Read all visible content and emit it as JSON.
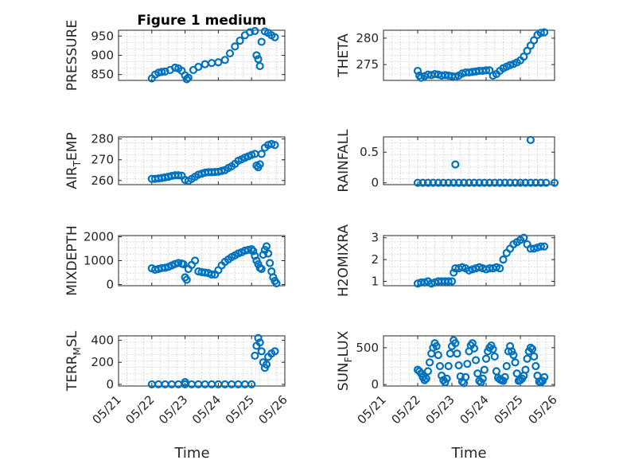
{
  "page": {
    "background": "#ffffff",
    "marker_color": "#0072BD"
  },
  "chart_data": [
    {
      "type": "scatter",
      "title": "Figure 1 medium",
      "ylabel": "PRESSURE",
      "ylabel_sub": "",
      "ylim": [
        835,
        965
      ],
      "yticks": [
        850,
        900,
        950
      ],
      "ytick_labels": [
        "850",
        "900",
        "950"
      ],
      "xlim": [
        0,
        5
      ],
      "grid": true,
      "x": [
        1.0,
        1.1,
        1.2,
        1.3,
        1.4,
        1.55,
        1.7,
        1.8,
        1.9,
        2.0,
        2.05,
        2.1,
        2.25,
        2.4,
        2.6,
        2.8,
        3.0,
        3.2,
        3.35,
        3.5,
        3.65,
        3.8,
        3.95,
        4.1,
        4.15,
        4.2,
        4.25,
        4.3,
        4.4,
        4.5,
        4.6,
        4.7
      ],
      "y": [
        840,
        850,
        855,
        857,
        858,
        862,
        868,
        866,
        860,
        848,
        838,
        842,
        862,
        870,
        877,
        880,
        882,
        888,
        905,
        923,
        938,
        952,
        960,
        963,
        900,
        890,
        872,
        935,
        962,
        958,
        952,
        947
      ]
    },
    {
      "type": "scatter",
      "title": "",
      "ylabel": "THETA",
      "ylabel_sub": "",
      "ylim": [
        272,
        281.5
      ],
      "yticks": [
        275,
        280
      ],
      "ytick_labels": [
        "275",
        "280"
      ],
      "xlim": [
        0,
        5
      ],
      "grid": true,
      "x": [
        1.0,
        1.05,
        1.1,
        1.2,
        1.3,
        1.4,
        1.5,
        1.6,
        1.7,
        1.8,
        1.9,
        2.0,
        2.1,
        2.2,
        2.3,
        2.4,
        2.5,
        2.6,
        2.7,
        2.8,
        2.9,
        3.0,
        3.1,
        3.2,
        3.3,
        3.4,
        3.5,
        3.6,
        3.7,
        3.8,
        3.9,
        4.0,
        4.1,
        4.2,
        4.3,
        4.4,
        4.5,
        4.6,
        4.7
      ],
      "y": [
        273.8,
        272.9,
        272.5,
        272.8,
        273.1,
        273.0,
        273.2,
        273.1,
        272.9,
        273.0,
        272.9,
        272.8,
        272.7,
        272.9,
        273.3,
        273.5,
        273.5,
        273.6,
        273.7,
        273.8,
        273.8,
        273.9,
        273.9,
        272.9,
        273.2,
        273.8,
        274.3,
        274.6,
        274.9,
        275.1,
        275.4,
        275.8,
        276.5,
        277.6,
        278.6,
        279.6,
        280.6,
        281.0,
        281.1
      ]
    },
    {
      "type": "scatter",
      "title": "",
      "ylabel": "AIR",
      "ylabel_sub": "T",
      "ylabel_tail": "EMP",
      "ylim": [
        258,
        281
      ],
      "yticks": [
        260,
        270,
        280
      ],
      "ytick_labels": [
        "260",
        "270",
        "280"
      ],
      "xlim": [
        0,
        5
      ],
      "grid": true,
      "x": [
        1.0,
        1.1,
        1.2,
        1.3,
        1.4,
        1.5,
        1.6,
        1.7,
        1.8,
        1.9,
        2.0,
        2.1,
        2.2,
        2.3,
        2.4,
        2.5,
        2.6,
        2.7,
        2.8,
        2.9,
        3.0,
        3.1,
        3.2,
        3.3,
        3.4,
        3.5,
        3.6,
        3.7,
        3.8,
        3.9,
        4.0,
        4.1,
        4.15,
        4.2,
        4.25,
        4.3,
        4.4,
        4.5,
        4.6,
        4.7
      ],
      "y": [
        260.8,
        260.8,
        261.0,
        261.2,
        261.5,
        261.8,
        262.2,
        262.5,
        262.5,
        262.3,
        260.3,
        259.8,
        260.8,
        261.8,
        262.8,
        263.3,
        263.8,
        264.0,
        264.0,
        264.1,
        264.2,
        264.6,
        265.0,
        266.0,
        266.8,
        268.0,
        269.5,
        270.2,
        271.0,
        271.6,
        272.3,
        272.8,
        267.2,
        266.4,
        267.8,
        272.8,
        275.8,
        277.1,
        277.6,
        277.1
      ]
    },
    {
      "type": "scatter",
      "title": "",
      "ylabel": "RAINFALL",
      "ylabel_sub": "",
      "ylim": [
        -0.03,
        0.75
      ],
      "yticks": [
        0,
        0.5
      ],
      "ytick_labels": [
        "0",
        "0.5"
      ],
      "xlim": [
        0,
        5
      ],
      "grid": true,
      "x": [
        1.0,
        1.15,
        1.3,
        1.45,
        1.6,
        1.75,
        1.9,
        2.05,
        2.2,
        2.35,
        2.5,
        2.65,
        2.8,
        2.95,
        3.1,
        3.25,
        3.4,
        3.55,
        3.7,
        3.85,
        4.0,
        4.15,
        4.3,
        4.45,
        4.6,
        4.75,
        5.0,
        2.1,
        4.3
      ],
      "y": [
        0,
        0,
        0,
        0,
        0,
        0,
        0,
        0,
        0,
        0,
        0,
        0,
        0,
        0,
        0,
        0,
        0,
        0,
        0,
        0,
        0,
        0,
        0,
        0,
        0,
        0,
        0,
        0.3,
        0.7
      ]
    },
    {
      "type": "scatter",
      "title": "",
      "ylabel": "MIXDEPTH",
      "ylabel_sub": "",
      "ylim": [
        -50,
        2050
      ],
      "yticks": [
        0,
        1000,
        2000
      ],
      "ytick_labels": [
        "0",
        "1000",
        "2000"
      ],
      "xlim": [
        0,
        5
      ],
      "grid": true,
      "x": [
        1.0,
        1.1,
        1.2,
        1.3,
        1.4,
        1.5,
        1.6,
        1.7,
        1.8,
        1.9,
        1.95,
        2.0,
        2.05,
        2.1,
        2.2,
        2.3,
        2.4,
        2.5,
        2.6,
        2.7,
        2.8,
        2.9,
        3.0,
        3.1,
        3.2,
        3.3,
        3.4,
        3.5,
        3.6,
        3.7,
        3.8,
        3.9,
        4.0,
        4.05,
        4.1,
        4.15,
        4.2,
        4.25,
        4.3,
        4.35,
        4.4,
        4.45,
        4.5,
        4.55,
        4.6,
        4.65,
        4.7,
        4.75
      ],
      "y": [
        680,
        620,
        650,
        690,
        700,
        740,
        800,
        860,
        900,
        880,
        850,
        300,
        200,
        650,
        820,
        1000,
        550,
        520,
        500,
        480,
        420,
        420,
        600,
        800,
        950,
        1050,
        1150,
        1220,
        1300,
        1350,
        1420,
        1450,
        1480,
        1400,
        1200,
        1000,
        850,
        700,
        650,
        1250,
        1450,
        1600,
        1300,
        900,
        550,
        300,
        150,
        50
      ]
    },
    {
      "type": "scatter",
      "title": "",
      "ylabel": "H2OMIXRA",
      "ylabel_sub": "",
      "ylim": [
        0.8,
        3.1
      ],
      "yticks": [
        1,
        2,
        3
      ],
      "ytick_labels": [
        "1",
        "2",
        "3"
      ],
      "xlim": [
        0,
        5
      ],
      "grid": true,
      "x": [
        1.0,
        1.1,
        1.2,
        1.3,
        1.4,
        1.5,
        1.6,
        1.7,
        1.8,
        1.9,
        2.0,
        2.05,
        2.1,
        2.2,
        2.3,
        2.4,
        2.5,
        2.6,
        2.7,
        2.8,
        2.9,
        3.0,
        3.1,
        3.2,
        3.3,
        3.4,
        3.5,
        3.6,
        3.7,
        3.8,
        3.9,
        4.0,
        4.1,
        4.2,
        4.3,
        4.4,
        4.5,
        4.6,
        4.7
      ],
      "y": [
        0.9,
        0.95,
        0.95,
        1.0,
        0.9,
        0.95,
        1.0,
        1.0,
        1.0,
        1.0,
        1.0,
        1.4,
        1.6,
        1.6,
        1.65,
        1.6,
        1.5,
        1.55,
        1.6,
        1.65,
        1.6,
        1.55,
        1.6,
        1.6,
        1.65,
        1.6,
        2.0,
        2.3,
        2.5,
        2.7,
        2.8,
        2.9,
        3.0,
        2.7,
        2.5,
        2.5,
        2.55,
        2.6,
        2.6
      ]
    },
    {
      "type": "scatter",
      "title": "",
      "ylabel": "TERR",
      "ylabel_sub": "M",
      "ylabel_tail": "SL",
      "ylim": [
        -15,
        440
      ],
      "yticks": [
        0,
        200,
        400
      ],
      "ytick_labels": [
        "0",
        "200",
        "400"
      ],
      "xlim": [
        0,
        5
      ],
      "grid": true,
      "x": [
        1.0,
        1.2,
        1.4,
        1.6,
        1.8,
        2.0,
        2.2,
        2.4,
        2.6,
        2.8,
        3.0,
        3.2,
        3.4,
        3.6,
        3.8,
        4.0,
        2.0,
        4.1,
        4.15,
        4.2,
        4.25,
        4.3,
        4.35,
        4.4,
        4.45,
        4.5,
        4.6,
        4.7
      ],
      "y": [
        0,
        0,
        0,
        0,
        0,
        0,
        0,
        0,
        0,
        0,
        0,
        0,
        0,
        0,
        0,
        0,
        20,
        260,
        350,
        420,
        380,
        300,
        200,
        150,
        180,
        250,
        280,
        300
      ]
    },
    {
      "type": "scatter",
      "title": "",
      "ylabel": "SUN",
      "ylabel_sub": "F",
      "ylabel_tail": "LUX",
      "ylim": [
        -20,
        660
      ],
      "yticks": [
        0,
        500
      ],
      "ytick_labels": [
        "0",
        "500"
      ],
      "xlim": [
        0,
        5
      ],
      "grid": true,
      "x": [
        1.0,
        1.05,
        1.1,
        1.15,
        1.2,
        1.25,
        1.3,
        1.35,
        1.4,
        1.45,
        1.5,
        1.55,
        1.6,
        1.65,
        1.7,
        1.75,
        1.8,
        1.85,
        1.9,
        1.95,
        2.0,
        2.05,
        2.1,
        2.15,
        2.2,
        2.25,
        2.3,
        2.35,
        2.4,
        2.45,
        2.5,
        2.55,
        2.6,
        2.65,
        2.7,
        2.75,
        2.8,
        2.85,
        2.9,
        2.95,
        3.0,
        3.05,
        3.1,
        3.15,
        3.2,
        3.25,
        3.3,
        3.35,
        3.4,
        3.45,
        3.5,
        3.55,
        3.6,
        3.65,
        3.7,
        3.75,
        3.8,
        3.85,
        3.9,
        3.95,
        4.0,
        4.05,
        4.1,
        4.15,
        4.2,
        4.25,
        4.3,
        4.35,
        4.4,
        4.45,
        4.5,
        4.55,
        4.6,
        4.65,
        4.7
      ],
      "y": [
        200,
        180,
        150,
        100,
        60,
        80,
        180,
        300,
        420,
        500,
        560,
        520,
        400,
        250,
        120,
        60,
        30,
        80,
        250,
        420,
        520,
        600,
        560,
        420,
        260,
        110,
        40,
        20,
        100,
        280,
        450,
        530,
        560,
        490,
        330,
        150,
        50,
        30,
        80,
        200,
        350,
        450,
        500,
        530,
        480,
        380,
        180,
        90,
        70,
        60,
        50,
        100,
        250,
        450,
        520,
        450,
        400,
        300,
        150,
        50,
        60,
        80,
        120,
        200,
        350,
        450,
        500,
        480,
        380,
        250,
        120,
        40,
        30,
        50,
        100
      ]
    }
  ],
  "x_axis": {
    "label": "Time",
    "tick_labels": [
      "05/21",
      "05/22",
      "05/23",
      "05/24",
      "05/25",
      "05/26"
    ],
    "tick_values": [
      0,
      1,
      2,
      3,
      4,
      5
    ]
  }
}
